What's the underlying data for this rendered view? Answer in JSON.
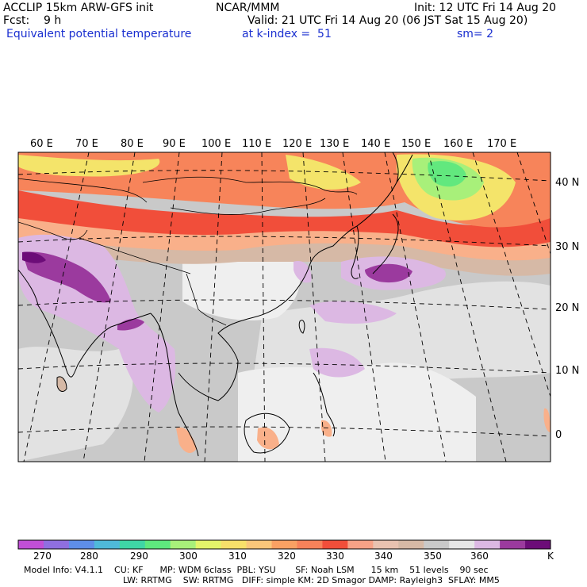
{
  "header": {
    "line1_left": "ACCLIP 15km ARW-GFS init",
    "line1_center": "NCAR/MMM",
    "line1_right": "Init: 12 UTC Fri 14 Aug 20",
    "line2_left": "Fcst:    9 h",
    "line2_right": "Valid: 21 UTC Fri 14 Aug 20 (06 JST Sat 15 Aug 20)",
    "line3_field": "Equivalent potential temperature",
    "line3_level": "at k-index =  51",
    "line3_smooth": "sm= 2"
  },
  "map": {
    "lon_labels": [
      "60 E",
      "70 E",
      "80 E",
      "90 E",
      "100 E",
      "110 E",
      "120 E",
      "130 E",
      "140 E",
      "150 E",
      "160 E",
      "170 E"
    ],
    "lat_labels": [
      "40 N",
      "30 N",
      "20 N",
      "10 N",
      "0"
    ],
    "colors": {
      "hot_red": "#f14e3a",
      "orange": "#f7845a",
      "light_orange": "#f9b08a",
      "yellow": "#f4e46a",
      "light_green": "#a8f07a",
      "green": "#62e87e",
      "tan": "#d6b9a6",
      "gray": "#c9c9c9",
      "light_gray": "#e2e2e2",
      "near_white": "#efefef",
      "lavender": "#dcb8e3",
      "purple": "#9b3a9e",
      "dark_purple": "#6c0c78",
      "coast": "#000000",
      "grid": "#000000"
    }
  },
  "colorbar": {
    "unit": "K",
    "labels": [
      "270",
      "280",
      "290",
      "300",
      "310",
      "320",
      "330",
      "340",
      "350",
      "360"
    ],
    "colors": [
      "#c14fd6",
      "#8f6fe0",
      "#5e8ee8",
      "#4fb9d9",
      "#3fd6a6",
      "#5ee87e",
      "#a8f07a",
      "#e4f46a",
      "#f7e06a",
      "#f9c77a",
      "#f9a163",
      "#f7825a",
      "#f14e3a",
      "#f7a287",
      "#e9c2b0",
      "#d6b9a6",
      "#c9c9c9",
      "#e6e6e6",
      "#dcb8e3",
      "#9b3a9e",
      "#6c0c78"
    ]
  },
  "footer": {
    "line1": "Model Info: V4.1.1    CU: KF      MP: WDM 6class  PBL: YSU       SF: Noah LSM      15 km    51 levels    90 sec",
    "line2": "LW: RRTMG    SW: RRTMG   DIFF: simple KM: 2D Smagor DAMP: Rayleigh3  SFLAY: MM5"
  }
}
